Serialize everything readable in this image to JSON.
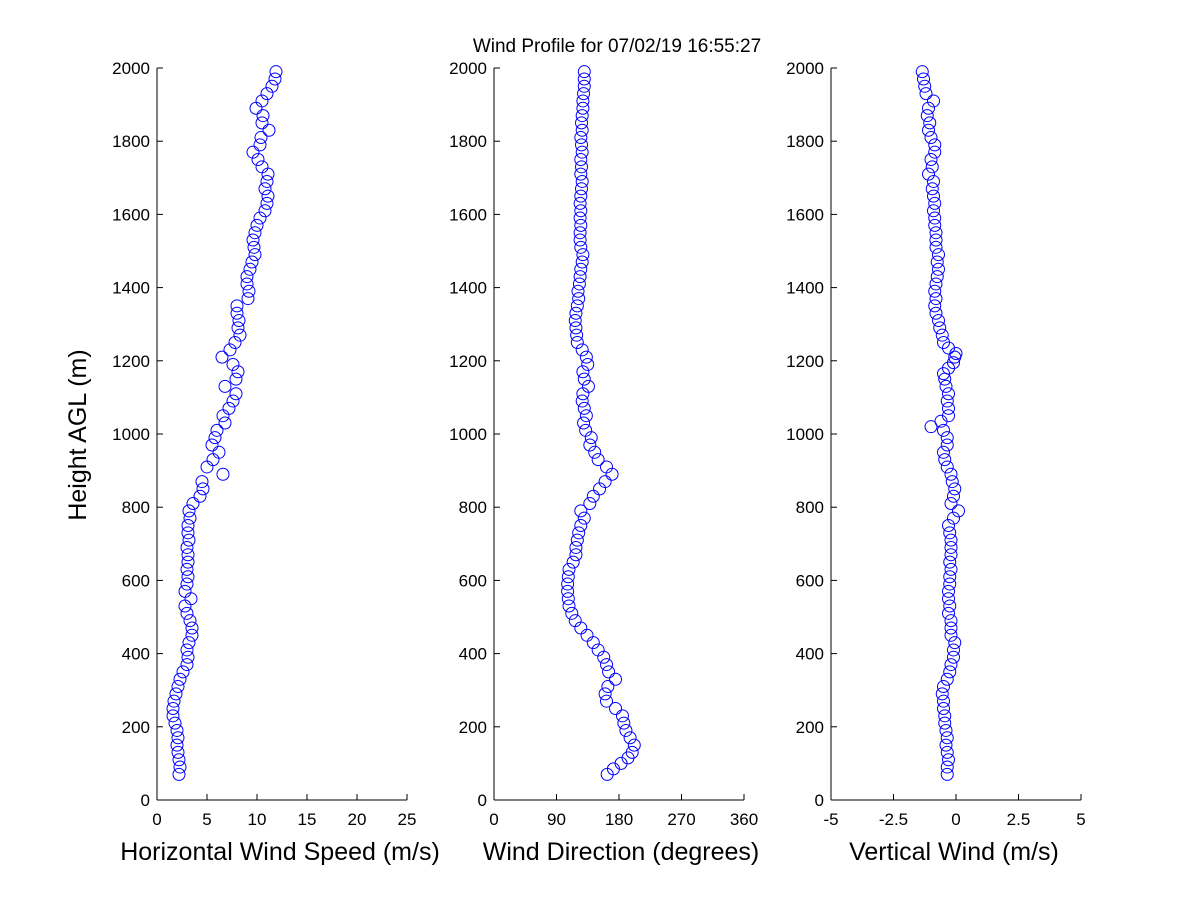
{
  "title": "Wind Profile for  07/02/19 16:55:27",
  "ylabel": "Height AGL (m)",
  "colors": {
    "marker": "#0000ff",
    "axis": "#000000",
    "background": "#ffffff"
  },
  "chart_data": [
    {
      "type": "scatter",
      "xlabel": "Horizontal Wind Speed (m/s)",
      "ylabel": "Height AGL (m)",
      "xlim": [
        0,
        25
      ],
      "ylim": [
        0,
        2000
      ],
      "xticks": [
        "0",
        "5",
        "10",
        "15",
        "20",
        "25"
      ],
      "yticks": [
        "0",
        "200",
        "400",
        "600",
        "800",
        "1000",
        "1200",
        "1400",
        "1600",
        "1800",
        "2000"
      ],
      "grid": false,
      "marker": "open-circle",
      "points": [
        [
          2.2,
          70
        ],
        [
          2.3,
          90
        ],
        [
          2.2,
          110
        ],
        [
          2.1,
          130
        ],
        [
          2.0,
          150
        ],
        [
          2.1,
          170
        ],
        [
          2.0,
          190
        ],
        [
          1.8,
          210
        ],
        [
          1.6,
          230
        ],
        [
          1.6,
          250
        ],
        [
          1.7,
          270
        ],
        [
          1.9,
          290
        ],
        [
          2.1,
          310
        ],
        [
          2.3,
          330
        ],
        [
          2.6,
          350
        ],
        [
          3.0,
          370
        ],
        [
          3.1,
          390
        ],
        [
          3.0,
          410
        ],
        [
          3.2,
          430
        ],
        [
          3.5,
          450
        ],
        [
          3.5,
          470
        ],
        [
          3.3,
          490
        ],
        [
          3.0,
          510
        ],
        [
          2.8,
          530
        ],
        [
          3.4,
          550
        ],
        [
          2.8,
          570
        ],
        [
          3.0,
          590
        ],
        [
          3.1,
          610
        ],
        [
          3.0,
          630
        ],
        [
          3.1,
          650
        ],
        [
          3.1,
          670
        ],
        [
          3.0,
          690
        ],
        [
          3.2,
          710
        ],
        [
          3.1,
          730
        ],
        [
          3.1,
          750
        ],
        [
          3.3,
          770
        ],
        [
          3.2,
          790
        ],
        [
          3.6,
          810
        ],
        [
          4.3,
          830
        ],
        [
          4.6,
          850
        ],
        [
          4.5,
          870
        ],
        [
          6.6,
          890
        ],
        [
          5.0,
          910
        ],
        [
          5.6,
          930
        ],
        [
          6.2,
          950
        ],
        [
          5.5,
          970
        ],
        [
          5.8,
          990
        ],
        [
          6.0,
          1010
        ],
        [
          6.8,
          1030
        ],
        [
          6.6,
          1050
        ],
        [
          7.2,
          1070
        ],
        [
          7.6,
          1090
        ],
        [
          7.9,
          1110
        ],
        [
          6.8,
          1130
        ],
        [
          7.9,
          1150
        ],
        [
          8.1,
          1170
        ],
        [
          7.6,
          1190
        ],
        [
          6.5,
          1210
        ],
        [
          7.3,
          1230
        ],
        [
          7.8,
          1250
        ],
        [
          8.3,
          1270
        ],
        [
          8.1,
          1290
        ],
        [
          8.2,
          1310
        ],
        [
          8.0,
          1330
        ],
        [
          8.0,
          1350
        ],
        [
          9.1,
          1370
        ],
        [
          9.2,
          1390
        ],
        [
          9.0,
          1410
        ],
        [
          9.0,
          1430
        ],
        [
          9.3,
          1450
        ],
        [
          9.5,
          1470
        ],
        [
          9.8,
          1490
        ],
        [
          9.7,
          1510
        ],
        [
          9.6,
          1530
        ],
        [
          9.8,
          1550
        ],
        [
          10.0,
          1570
        ],
        [
          10.3,
          1590
        ],
        [
          10.8,
          1610
        ],
        [
          11.0,
          1630
        ],
        [
          11.1,
          1650
        ],
        [
          10.8,
          1670
        ],
        [
          11.0,
          1690
        ],
        [
          11.1,
          1710
        ],
        [
          10.5,
          1730
        ],
        [
          10.1,
          1750
        ],
        [
          9.6,
          1770
        ],
        [
          10.3,
          1790
        ],
        [
          10.4,
          1810
        ],
        [
          11.2,
          1830
        ],
        [
          10.5,
          1850
        ],
        [
          10.6,
          1870
        ],
        [
          9.9,
          1890
        ],
        [
          10.5,
          1910
        ],
        [
          11.0,
          1930
        ],
        [
          11.5,
          1950
        ],
        [
          11.8,
          1970
        ],
        [
          11.9,
          1990
        ]
      ]
    },
    {
      "type": "scatter",
      "xlabel": "Wind Direction (degrees)",
      "ylabel": "",
      "xlim": [
        0,
        360
      ],
      "ylim": [
        0,
        2000
      ],
      "xticks": [
        "0",
        "90",
        "180",
        "270",
        "360"
      ],
      "yticks": [
        "0",
        "200",
        "400",
        "600",
        "800",
        "1000",
        "1200",
        "1400",
        "1600",
        "1800",
        "2000"
      ],
      "grid": false,
      "marker": "open-circle",
      "points": [
        [
          163,
          70
        ],
        [
          172,
          85
        ],
        [
          183,
          100
        ],
        [
          193,
          115
        ],
        [
          199,
          130
        ],
        [
          202,
          150
        ],
        [
          196,
          170
        ],
        [
          190,
          190
        ],
        [
          187,
          210
        ],
        [
          185,
          230
        ],
        [
          175,
          250
        ],
        [
          162,
          270
        ],
        [
          160,
          290
        ],
        [
          164,
          310
        ],
        [
          175,
          330
        ],
        [
          165,
          350
        ],
        [
          162,
          370
        ],
        [
          158,
          390
        ],
        [
          150,
          410
        ],
        [
          143,
          430
        ],
        [
          134,
          450
        ],
        [
          125,
          470
        ],
        [
          117,
          490
        ],
        [
          112,
          510
        ],
        [
          108,
          530
        ],
        [
          107,
          550
        ],
        [
          106,
          570
        ],
        [
          106,
          590
        ],
        [
          107,
          610
        ],
        [
          108,
          630
        ],
        [
          114,
          650
        ],
        [
          118,
          670
        ],
        [
          118,
          690
        ],
        [
          120,
          710
        ],
        [
          122,
          730
        ],
        [
          125,
          750
        ],
        [
          130,
          770
        ],
        [
          125,
          790
        ],
        [
          138,
          810
        ],
        [
          143,
          830
        ],
        [
          152,
          850
        ],
        [
          160,
          870
        ],
        [
          170,
          890
        ],
        [
          162,
          910
        ],
        [
          150,
          930
        ],
        [
          145,
          950
        ],
        [
          138,
          970
        ],
        [
          140,
          990
        ],
        [
          132,
          1010
        ],
        [
          129,
          1030
        ],
        [
          133,
          1050
        ],
        [
          130,
          1070
        ],
        [
          127,
          1090
        ],
        [
          128,
          1110
        ],
        [
          136,
          1130
        ],
        [
          130,
          1150
        ],
        [
          128,
          1170
        ],
        [
          135,
          1190
        ],
        [
          133,
          1210
        ],
        [
          127,
          1230
        ],
        [
          120,
          1250
        ],
        [
          119,
          1270
        ],
        [
          118,
          1290
        ],
        [
          117,
          1310
        ],
        [
          118,
          1330
        ],
        [
          120,
          1350
        ],
        [
          122,
          1370
        ],
        [
          121,
          1390
        ],
        [
          123,
          1410
        ],
        [
          124,
          1430
        ],
        [
          125,
          1450
        ],
        [
          127,
          1470
        ],
        [
          128,
          1490
        ],
        [
          125,
          1510
        ],
        [
          124,
          1530
        ],
        [
          124,
          1550
        ],
        [
          125,
          1570
        ],
        [
          124,
          1590
        ],
        [
          125,
          1610
        ],
        [
          124,
          1630
        ],
        [
          125,
          1650
        ],
        [
          126,
          1670
        ],
        [
          127,
          1690
        ],
        [
          125,
          1710
        ],
        [
          126,
          1730
        ],
        [
          125,
          1750
        ],
        [
          127,
          1770
        ],
        [
          126,
          1790
        ],
        [
          125,
          1810
        ],
        [
          127,
          1830
        ],
        [
          126,
          1850
        ],
        [
          127,
          1870
        ],
        [
          128,
          1890
        ],
        [
          128,
          1910
        ],
        [
          129,
          1930
        ],
        [
          130,
          1950
        ],
        [
          130,
          1970
        ],
        [
          130,
          1990
        ]
      ]
    },
    {
      "type": "scatter",
      "xlabel": "Vertical Wind (m/s)",
      "ylabel": "",
      "xlim": [
        -5,
        5
      ],
      "ylim": [
        0,
        2000
      ],
      "xticks": [
        "-5",
        "-2.5",
        "0",
        "2.5",
        "5"
      ],
      "yticks": [
        "0",
        "200",
        "400",
        "600",
        "800",
        "1000",
        "1200",
        "1400",
        "1600",
        "1800",
        "2000"
      ],
      "grid": false,
      "marker": "open-circle",
      "points": [
        [
          -0.35,
          70
        ],
        [
          -0.35,
          90
        ],
        [
          -0.3,
          110
        ],
        [
          -0.35,
          130
        ],
        [
          -0.4,
          150
        ],
        [
          -0.35,
          170
        ],
        [
          -0.4,
          190
        ],
        [
          -0.45,
          210
        ],
        [
          -0.45,
          230
        ],
        [
          -0.5,
          250
        ],
        [
          -0.5,
          270
        ],
        [
          -0.55,
          290
        ],
        [
          -0.5,
          310
        ],
        [
          -0.35,
          330
        ],
        [
          -0.25,
          350
        ],
        [
          -0.2,
          370
        ],
        [
          -0.1,
          390
        ],
        [
          -0.1,
          410
        ],
        [
          -0.05,
          430
        ],
        [
          -0.2,
          450
        ],
        [
          -0.2,
          470
        ],
        [
          -0.2,
          490
        ],
        [
          -0.3,
          510
        ],
        [
          -0.25,
          530
        ],
        [
          -0.3,
          550
        ],
        [
          -0.3,
          570
        ],
        [
          -0.25,
          590
        ],
        [
          -0.25,
          610
        ],
        [
          -0.2,
          630
        ],
        [
          -0.25,
          650
        ],
        [
          -0.2,
          670
        ],
        [
          -0.2,
          690
        ],
        [
          -0.2,
          710
        ],
        [
          -0.25,
          730
        ],
        [
          -0.3,
          750
        ],
        [
          -0.1,
          770
        ],
        [
          0.1,
          790
        ],
        [
          -0.2,
          810
        ],
        [
          -0.1,
          830
        ],
        [
          -0.05,
          850
        ],
        [
          -0.15,
          870
        ],
        [
          -0.2,
          890
        ],
        [
          -0.35,
          910
        ],
        [
          -0.45,
          930
        ],
        [
          -0.5,
          950
        ],
        [
          -0.35,
          970
        ],
        [
          -0.35,
          990
        ],
        [
          -0.5,
          1010
        ],
        [
          -1.0,
          1020
        ],
        [
          -0.6,
          1035
        ],
        [
          -0.3,
          1050
        ],
        [
          -0.3,
          1070
        ],
        [
          -0.35,
          1090
        ],
        [
          -0.3,
          1110
        ],
        [
          -0.4,
          1130
        ],
        [
          -0.45,
          1150
        ],
        [
          -0.5,
          1165
        ],
        [
          -0.3,
          1180
        ],
        [
          -0.1,
          1195
        ],
        [
          -0.05,
          1210
        ],
        [
          0.0,
          1220
        ],
        [
          -0.3,
          1235
        ],
        [
          -0.5,
          1250
        ],
        [
          -0.55,
          1270
        ],
        [
          -0.65,
          1290
        ],
        [
          -0.7,
          1310
        ],
        [
          -0.8,
          1330
        ],
        [
          -0.85,
          1350
        ],
        [
          -0.8,
          1370
        ],
        [
          -0.85,
          1390
        ],
        [
          -0.8,
          1410
        ],
        [
          -0.75,
          1430
        ],
        [
          -0.7,
          1450
        ],
        [
          -0.75,
          1470
        ],
        [
          -0.7,
          1490
        ],
        [
          -0.8,
          1510
        ],
        [
          -0.8,
          1530
        ],
        [
          -0.8,
          1550
        ],
        [
          -0.85,
          1570
        ],
        [
          -0.85,
          1590
        ],
        [
          -0.9,
          1610
        ],
        [
          -0.85,
          1630
        ],
        [
          -0.9,
          1650
        ],
        [
          -0.95,
          1670
        ],
        [
          -0.9,
          1690
        ],
        [
          -1.1,
          1710
        ],
        [
          -0.95,
          1730
        ],
        [
          -1.0,
          1750
        ],
        [
          -0.85,
          1770
        ],
        [
          -0.85,
          1790
        ],
        [
          -1.0,
          1810
        ],
        [
          -1.1,
          1830
        ],
        [
          -1.05,
          1850
        ],
        [
          -1.15,
          1870
        ],
        [
          -1.1,
          1890
        ],
        [
          -0.9,
          1910
        ],
        [
          -1.2,
          1930
        ],
        [
          -1.25,
          1950
        ],
        [
          -1.3,
          1970
        ],
        [
          -1.35,
          1990
        ]
      ]
    }
  ]
}
